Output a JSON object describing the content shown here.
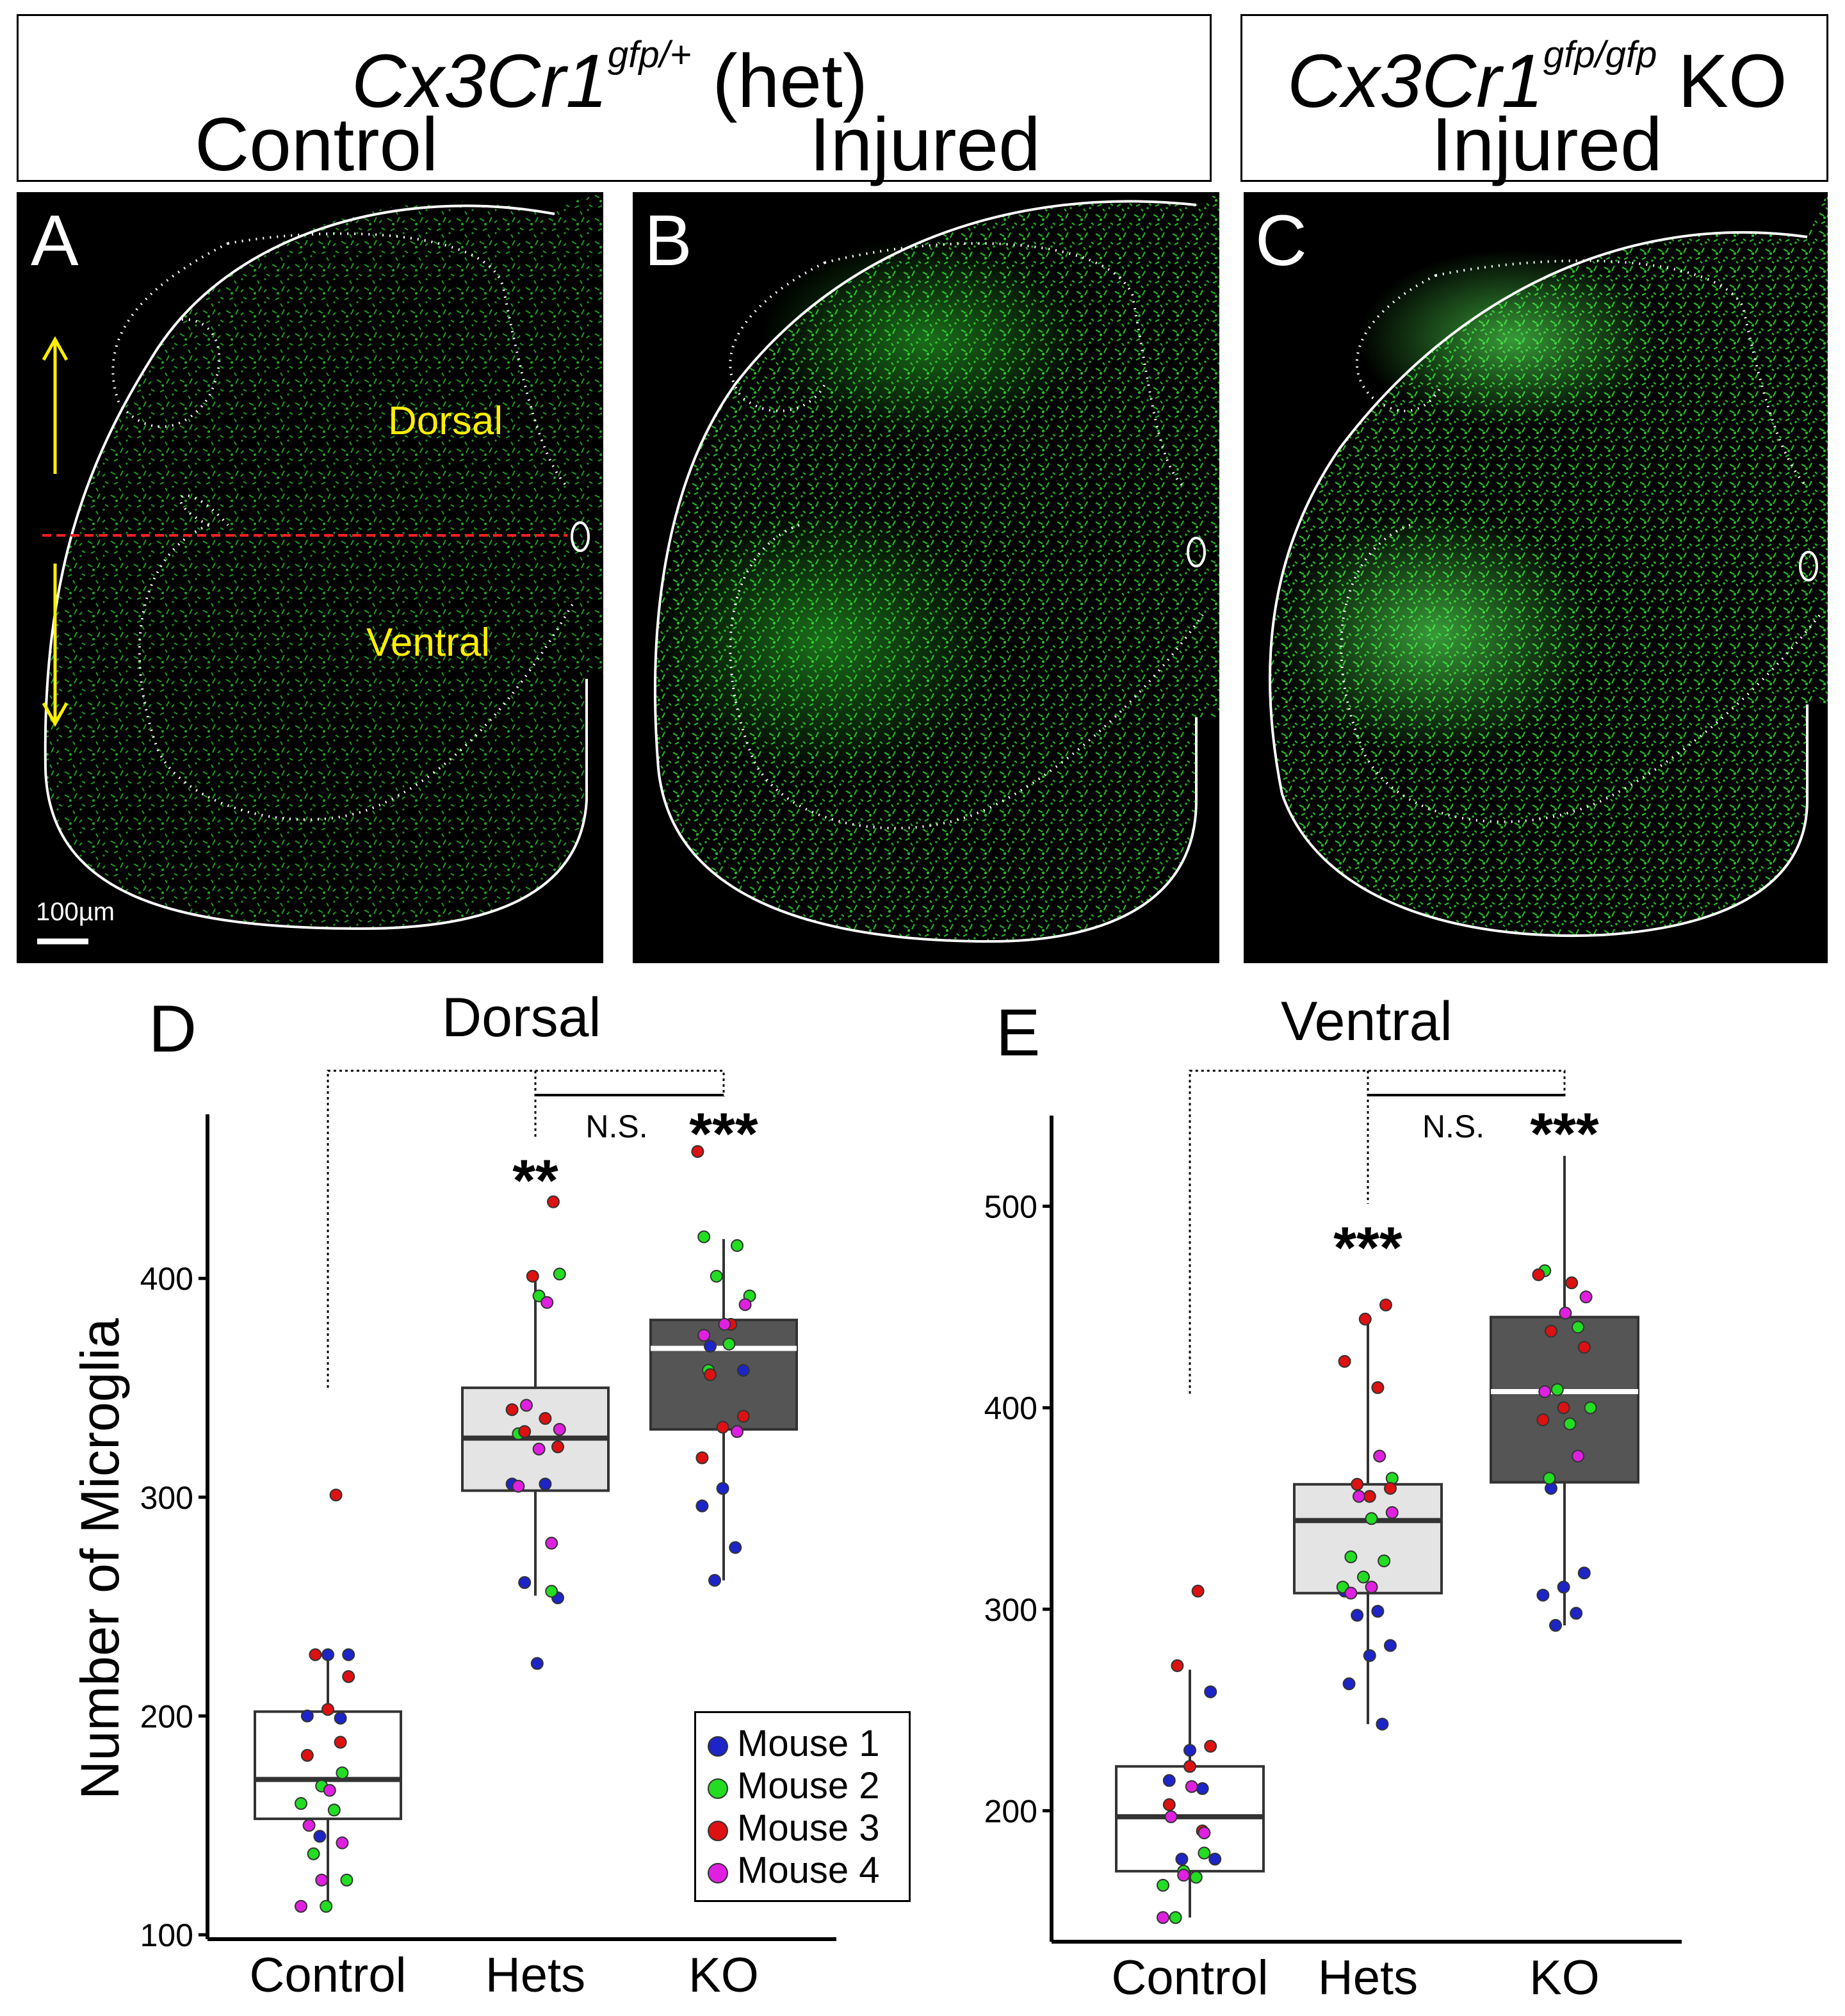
{
  "headers": {
    "het": {
      "gene": "Cx3Cr1",
      "superscript": "gfp/+",
      "genotype": "(het)",
      "cond_left": "Control",
      "cond_right": "Injured"
    },
    "ko": {
      "gene": "Cx3Cr1",
      "superscript": "gfp/gfp",
      "genotype": "KO",
      "cond": "Injured"
    }
  },
  "panels": {
    "a_label": "A",
    "b_label": "B",
    "c_label": "C",
    "dorsal_label": "Dorsal",
    "ventral_label": "Ventral",
    "scalebar": "100µm"
  },
  "colors": {
    "gfp": "#2bd12b",
    "annot": "#ffee00",
    "axis_red": "#ff2020",
    "mouse1": "#1d24c8",
    "mouse2": "#22dd22",
    "mouse3": "#dd1111",
    "mouse4": "#e020e0",
    "het_box": "#e4e4e4",
    "ko_box": "#555555"
  },
  "chart_data": [
    {
      "type": "box",
      "letter": "D",
      "title": "Dorsal",
      "ylabel": "Number of  Microglia",
      "categories": [
        "Control",
        "Hets",
        "KO"
      ],
      "ylim": [
        98,
        475
      ],
      "yticks": [
        100,
        200,
        300,
        400
      ],
      "boxes": [
        {
          "q1": 153,
          "median": 171,
          "q3": 202,
          "lo": 113,
          "hi": 228
        },
        {
          "q1": 303,
          "median": 327,
          "q3": 350,
          "lo": 255,
          "hi": 400
        },
        {
          "q1": 331,
          "median": 368,
          "q3": 381,
          "lo": 262,
          "hi": 418
        }
      ],
      "significance": {
        "hets": "**",
        "ko": "***",
        "ns": "N.S."
      },
      "legend": [
        "Mouse 1",
        "Mouse 2",
        "Mouse 3",
        "Mouse 4"
      ],
      "points": [
        [
          [
            228,
            228,
            200,
            199,
            145,
            1
          ],
          [
            174,
            168,
            160,
            157,
            137,
            125,
            113,
            2
          ],
          [
            301,
            228,
            218,
            203,
            182,
            188,
            3
          ],
          [
            166,
            150,
            142,
            125,
            113,
            4
          ]
        ],
        [
          [
            306,
            306,
            261,
            254,
            224,
            1
          ],
          [
            402,
            392,
            329,
            257,
            2
          ],
          [
            435,
            401,
            340,
            336,
            330,
            323,
            3
          ],
          [
            389,
            342,
            331,
            322,
            305,
            279,
            4
          ]
        ],
        [
          [
            369,
            358,
            304,
            296,
            277,
            262,
            1
          ],
          [
            419,
            415,
            401,
            392,
            370,
            358,
            2
          ],
          [
            458,
            379,
            356,
            337,
            332,
            318,
            3
          ],
          [
            388,
            379,
            374,
            330,
            4
          ]
        ]
      ]
    },
    {
      "type": "box",
      "letter": "E",
      "title": "Ventral",
      "categories": [
        "Control",
        "Hets",
        "KO"
      ],
      "ylim": [
        135,
        545
      ],
      "yticks": [
        200,
        300,
        400,
        500
      ],
      "boxes": [
        {
          "q1": 170,
          "median": 197,
          "q3": 222,
          "lo": 147,
          "hi": 270
        },
        {
          "q1": 308,
          "median": 344,
          "q3": 362,
          "lo": 243,
          "hi": 443
        },
        {
          "q1": 363,
          "median": 408,
          "q3": 445,
          "lo": 292,
          "hi": 525
        }
      ],
      "significance": {
        "hets": "***",
        "ko": "***",
        "ns": "N.S."
      },
      "points": [
        [
          [
            259,
            230,
            215,
            211,
            176,
            176,
            1
          ],
          [
            179,
            170,
            163,
            167,
            147,
            2
          ],
          [
            309,
            272,
            232,
            222,
            203,
            190,
            3
          ],
          [
            212,
            197,
            189,
            168,
            147,
            4
          ]
        ],
        [
          [
            309,
            299,
            297,
            282,
            277,
            263,
            243,
            1
          ],
          [
            365,
            345,
            326,
            324,
            316,
            311,
            2
          ],
          [
            451,
            444,
            423,
            410,
            362,
            360,
            356,
            3
          ],
          [
            376,
            356,
            348,
            311,
            308,
            4
          ]
        ],
        [
          [
            360,
            318,
            311,
            307,
            298,
            292,
            1
          ],
          [
            468,
            440,
            409,
            400,
            392,
            365,
            2
          ],
          [
            466,
            462,
            438,
            430,
            400,
            394,
            3
          ],
          [
            455,
            447,
            408,
            376,
            4
          ]
        ]
      ]
    }
  ]
}
